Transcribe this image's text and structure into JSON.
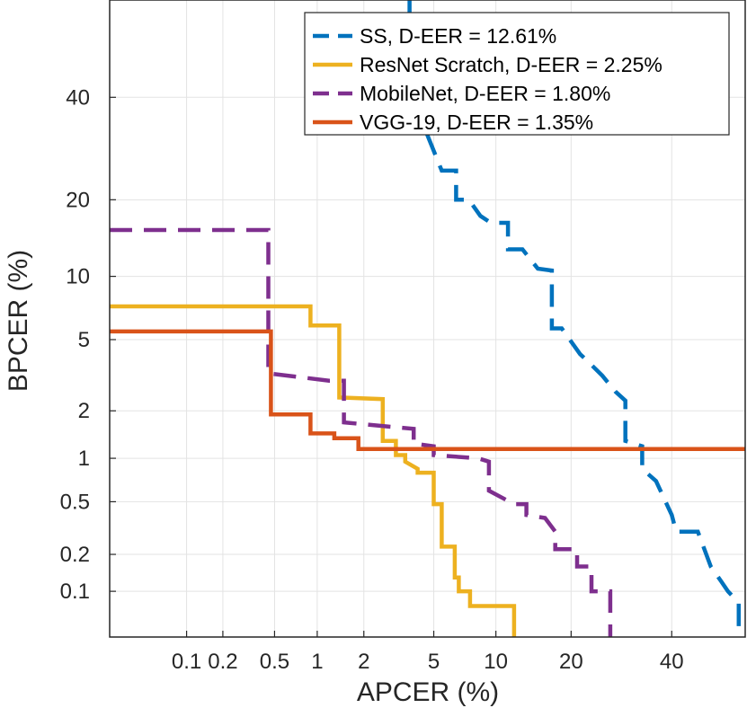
{
  "chart_data": {
    "type": "line",
    "title": "",
    "xlabel": "APCER (%)",
    "ylabel": "BPCER (%)",
    "xscale": "probit",
    "yscale": "probit",
    "xlim": [
      0.02,
      57
    ],
    "ylim": [
      0.04,
      62
    ],
    "grid": true,
    "legend_position": "top-right",
    "x_ticks": [
      0.1,
      0.2,
      0.5,
      1,
      2,
      5,
      10,
      20,
      40
    ],
    "x_tick_labels": [
      "0.1",
      "0.2",
      "0.5",
      "1",
      "2",
      "5",
      "10",
      "20",
      "40"
    ],
    "y_ticks": [
      0.1,
      0.2,
      0.5,
      1,
      2,
      5,
      10,
      20,
      40
    ],
    "y_tick_labels": [
      "0.1",
      "0.2",
      "0.5",
      "1",
      "2",
      "5",
      "10",
      "20",
      "40"
    ],
    "series": [
      {
        "name": "SS",
        "legend": "SS, D-EER = 12.61%",
        "color": "#0072BD",
        "style": "dashed",
        "points": [
          [
            3.7,
            62
          ],
          [
            3.7,
            45
          ],
          [
            4.2,
            36
          ],
          [
            5.5,
            25
          ],
          [
            6.5,
            25
          ],
          [
            6.5,
            20
          ],
          [
            7.5,
            20
          ],
          [
            8.5,
            17.5
          ],
          [
            9.5,
            16.5
          ],
          [
            11.3,
            16.5
          ],
          [
            11.3,
            13
          ],
          [
            13,
            13
          ],
          [
            15,
            10.8
          ],
          [
            17,
            10.6
          ],
          [
            17,
            5.7
          ],
          [
            18.5,
            5.7
          ],
          [
            21.5,
            4.2
          ],
          [
            23,
            3.8
          ],
          [
            25.5,
            3.2
          ],
          [
            28,
            2.6
          ],
          [
            30,
            2.3
          ],
          [
            30,
            1.3
          ],
          [
            33.5,
            1.2
          ],
          [
            33.5,
            0.85
          ],
          [
            36.5,
            0.7
          ],
          [
            40,
            0.4
          ],
          [
            41,
            0.3
          ],
          [
            46,
            0.3
          ],
          [
            49,
            0.16
          ],
          [
            51.5,
            0.12
          ],
          [
            53,
            0.1
          ],
          [
            55.5,
            0.08
          ],
          [
            55.5,
            0.05
          ]
        ]
      },
      {
        "name": "ResNet Scratch",
        "legend": "ResNet Scratch, D-EER = 2.25%",
        "color": "#EDB120",
        "style": "solid",
        "points": [
          [
            0.02,
            7.3
          ],
          [
            0.9,
            7.3
          ],
          [
            0.9,
            5.9
          ],
          [
            1.4,
            5.9
          ],
          [
            1.4,
            2.4
          ],
          [
            2.6,
            2.35
          ],
          [
            2.6,
            1.3
          ],
          [
            3.1,
            1.3
          ],
          [
            3.1,
            1.05
          ],
          [
            3.5,
            1.05
          ],
          [
            3.5,
            0.95
          ],
          [
            4.1,
            0.85
          ],
          [
            4.1,
            0.8
          ],
          [
            5,
            0.8
          ],
          [
            5,
            0.48
          ],
          [
            5.5,
            0.48
          ],
          [
            5.5,
            0.23
          ],
          [
            6.4,
            0.23
          ],
          [
            6.4,
            0.13
          ],
          [
            6.7,
            0.13
          ],
          [
            6.7,
            0.1
          ],
          [
            7.6,
            0.1
          ],
          [
            7.6,
            0.075
          ],
          [
            12,
            0.075
          ],
          [
            12,
            0.04
          ]
        ]
      },
      {
        "name": "MobileNet",
        "legend": "MobileNet, D-EER = 1.80%",
        "color": "#7E2F8E",
        "style": "dashed",
        "points": [
          [
            0.02,
            15.5
          ],
          [
            0.45,
            15.5
          ],
          [
            0.45,
            3.3
          ],
          [
            1.2,
            3.0
          ],
          [
            1.5,
            3.0
          ],
          [
            1.5,
            1.7
          ],
          [
            2.8,
            1.6
          ],
          [
            3.9,
            1.55
          ],
          [
            3.9,
            1.25
          ],
          [
            5,
            1.2
          ],
          [
            5,
            1.05
          ],
          [
            8.3,
            1.0
          ],
          [
            9.3,
            0.95
          ],
          [
            9.3,
            0.6
          ],
          [
            12,
            0.48
          ],
          [
            13.5,
            0.48
          ],
          [
            13.5,
            0.4
          ],
          [
            16,
            0.38
          ],
          [
            17.5,
            0.3
          ],
          [
            17.5,
            0.22
          ],
          [
            21,
            0.22
          ],
          [
            21,
            0.16
          ],
          [
            23.5,
            0.16
          ],
          [
            23.5,
            0.1
          ],
          [
            27,
            0.1
          ],
          [
            27,
            0.04
          ]
        ]
      },
      {
        "name": "VGG-19",
        "legend": "VGG-19, D-EER = 1.35%",
        "color": "#D95319",
        "style": "solid",
        "points": [
          [
            0.02,
            5.5
          ],
          [
            0.47,
            5.5
          ],
          [
            0.47,
            1.9
          ],
          [
            0.9,
            1.9
          ],
          [
            0.9,
            1.45
          ],
          [
            1.3,
            1.45
          ],
          [
            1.3,
            1.35
          ],
          [
            1.85,
            1.35
          ],
          [
            1.85,
            1.15
          ],
          [
            57,
            1.15
          ]
        ]
      }
    ]
  }
}
